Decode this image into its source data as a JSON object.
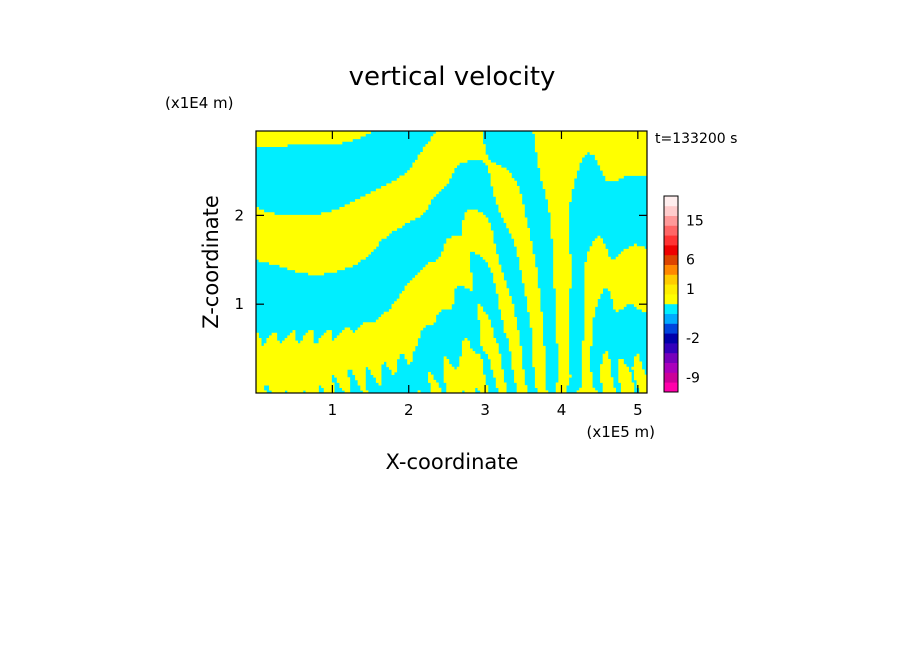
{
  "chart_data": {
    "type": "heatmap",
    "title": "vertical velocity",
    "xlabel": "X-coordinate",
    "ylabel": "Z-coordinate",
    "x_unit": "(x1E5 m)",
    "y_unit": "(x1E4 m)",
    "time_label": "t=133200 s",
    "xlim": [
      0,
      5.12
    ],
    "ylim": [
      0,
      2.95
    ],
    "x_ticks": [
      {
        "value": 1,
        "label": "1"
      },
      {
        "value": 2,
        "label": "2"
      },
      {
        "value": 3,
        "label": "3"
      },
      {
        "value": 4,
        "label": "4"
      },
      {
        "value": 5,
        "label": "5"
      }
    ],
    "y_ticks": [
      {
        "value": 1,
        "label": "1"
      },
      {
        "value": 2,
        "label": "2"
      }
    ],
    "grid": false,
    "dominant_fill": {
      "positive": "#ffff00",
      "negative": "#00eeff"
    },
    "colorbar": {
      "placement": "right",
      "levels": [
        {
          "color": "#ff00aa"
        },
        {
          "color": "#cc0099",
          "label": "-9"
        },
        {
          "color": "#aa00bb"
        },
        {
          "color": "#7700bb"
        },
        {
          "color": "#3300bb"
        },
        {
          "color": "#0000aa",
          "label": "-2"
        },
        {
          "color": "#0044dd"
        },
        {
          "color": "#00aaff"
        },
        {
          "color": "#00eeff"
        },
        {
          "color": "#ffff00"
        },
        {
          "color": "#ffee00",
          "label": "1"
        },
        {
          "color": "#ffcc00"
        },
        {
          "color": "#ff8800"
        },
        {
          "color": "#dd4400",
          "label": "6"
        },
        {
          "color": "#ee0000"
        },
        {
          "color": "#ff3333"
        },
        {
          "color": "#ff6666"
        },
        {
          "color": "#ff9999",
          "label": "15"
        },
        {
          "color": "#ffcccc"
        },
        {
          "color": "#ffeeee"
        }
      ]
    }
  }
}
